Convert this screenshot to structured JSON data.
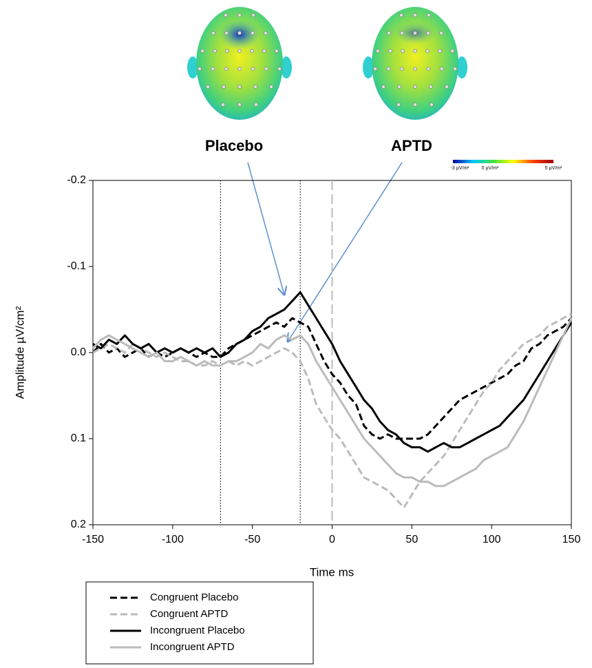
{
  "chart_data": {
    "type": "line",
    "xlabel": "Time ms",
    "ylabel": "Amplitude µV/cm²",
    "x": [
      -150,
      -145,
      -140,
      -135,
      -130,
      -125,
      -120,
      -115,
      -110,
      -105,
      -100,
      -95,
      -90,
      -85,
      -80,
      -75,
      -70,
      -65,
      -60,
      -55,
      -50,
      -45,
      -40,
      -35,
      -30,
      -25,
      -20,
      -15,
      -10,
      -5,
      0,
      5,
      10,
      15,
      20,
      25,
      30,
      35,
      40,
      45,
      50,
      55,
      60,
      65,
      70,
      75,
      80,
      85,
      90,
      95,
      100,
      105,
      110,
      115,
      120,
      125,
      130,
      135,
      140,
      145,
      150
    ],
    "series": [
      {
        "name": "Congruent Placebo",
        "color": "#000000",
        "style": "dashed",
        "values": [
          0.0,
          -0.01,
          0.0,
          -0.005,
          0.005,
          0.0,
          -0.005,
          0.005,
          0.0,
          0.005,
          0.0,
          -0.005,
          0.0,
          0.005,
          0.0,
          0.005,
          0.005,
          -0.005,
          -0.01,
          -0.015,
          -0.02,
          -0.025,
          -0.03,
          -0.035,
          -0.03,
          -0.04,
          -0.035,
          -0.03,
          -0.01,
          0.01,
          0.025,
          0.035,
          0.05,
          0.06,
          0.085,
          0.095,
          0.1,
          0.095,
          0.1,
          0.1,
          0.1,
          0.1,
          0.095,
          0.085,
          0.075,
          0.065,
          0.055,
          0.05,
          0.045,
          0.04,
          0.035,
          0.03,
          0.025,
          0.015,
          0.01,
          -0.005,
          -0.01,
          -0.02,
          -0.025,
          -0.03,
          -0.04
        ]
      },
      {
        "name": "Congruent APTD",
        "color": "#bbbbbb",
        "style": "dashed",
        "values": [
          0.0,
          -0.005,
          -0.01,
          -0.005,
          0.0,
          -0.01,
          -0.005,
          0.0,
          0.005,
          0.0,
          0.005,
          0.01,
          0.01,
          0.015,
          0.015,
          0.01,
          0.015,
          0.01,
          0.015,
          0.01,
          0.015,
          0.01,
          0.005,
          0.0,
          -0.005,
          0.0,
          0.01,
          0.03,
          0.06,
          0.075,
          0.09,
          0.1,
          0.115,
          0.13,
          0.145,
          0.15,
          0.155,
          0.16,
          0.17,
          0.18,
          0.165,
          0.15,
          0.14,
          0.13,
          0.12,
          0.105,
          0.09,
          0.075,
          0.06,
          0.045,
          0.035,
          0.02,
          0.01,
          0.0,
          -0.01,
          -0.015,
          -0.02,
          -0.03,
          -0.035,
          -0.04,
          -0.045
        ]
      },
      {
        "name": "Incongruent Placebo",
        "color": "#000000",
        "style": "solid",
        "values": [
          -0.01,
          -0.005,
          -0.015,
          -0.01,
          -0.02,
          -0.01,
          -0.005,
          -0.01,
          0.0,
          -0.005,
          0.0,
          -0.005,
          0.0,
          -0.005,
          0.0,
          -0.005,
          0.005,
          0.0,
          -0.01,
          -0.015,
          -0.025,
          -0.03,
          -0.04,
          -0.045,
          -0.05,
          -0.06,
          -0.07,
          -0.055,
          -0.04,
          -0.025,
          -0.01,
          0.01,
          0.025,
          0.04,
          0.055,
          0.065,
          0.08,
          0.09,
          0.095,
          0.105,
          0.11,
          0.11,
          0.115,
          0.11,
          0.105,
          0.11,
          0.11,
          0.105,
          0.1,
          0.095,
          0.09,
          0.085,
          0.075,
          0.065,
          0.055,
          0.04,
          0.025,
          0.01,
          -0.005,
          -0.02,
          -0.035
        ]
      },
      {
        "name": "Incongruent APTD",
        "color": "#bbbbbb",
        "style": "solid",
        "values": [
          -0.005,
          -0.015,
          -0.02,
          -0.015,
          -0.01,
          -0.005,
          0.0,
          0.005,
          0.0,
          0.01,
          0.01,
          0.005,
          0.01,
          0.015,
          0.01,
          0.015,
          0.015,
          0.01,
          0.01,
          0.005,
          0.0,
          -0.01,
          -0.005,
          -0.015,
          -0.02,
          -0.015,
          -0.02,
          -0.01,
          0.01,
          0.025,
          0.04,
          0.055,
          0.07,
          0.085,
          0.1,
          0.11,
          0.12,
          0.13,
          0.14,
          0.145,
          0.145,
          0.15,
          0.15,
          0.155,
          0.155,
          0.15,
          0.145,
          0.14,
          0.135,
          0.125,
          0.12,
          0.115,
          0.11,
          0.095,
          0.08,
          0.06,
          0.04,
          0.02,
          0.0,
          -0.02,
          -0.04
        ]
      }
    ],
    "xlim": [
      -150,
      150
    ],
    "xticks": [
      -150,
      -100,
      -50,
      0,
      50,
      100,
      150
    ],
    "ylim": [
      -0.2,
      0.2
    ],
    "y_inverted": true,
    "yticks": [
      -0.2,
      -0.1,
      {
        "value": 0,
        "label": "0.0"
      },
      0.1,
      0.2
    ],
    "vlines": [
      {
        "x": -70,
        "style": "dotted",
        "color": "#000000"
      },
      {
        "x": -20,
        "style": "dotted",
        "color": "#000000"
      },
      {
        "x": 0,
        "style": "dashed",
        "color": "#bbbbbb"
      }
    ],
    "annotations": [
      "Placebo",
      "APTD"
    ],
    "colorbar": {
      "labels": [
        "-3 µV/m²",
        "0 µV/m²",
        "5 µV/m²"
      ],
      "colors": [
        "#0000a0",
        "#00c8ff",
        "#40e040",
        "#ffff00",
        "#ff4000",
        "#a00000"
      ]
    }
  }
}
